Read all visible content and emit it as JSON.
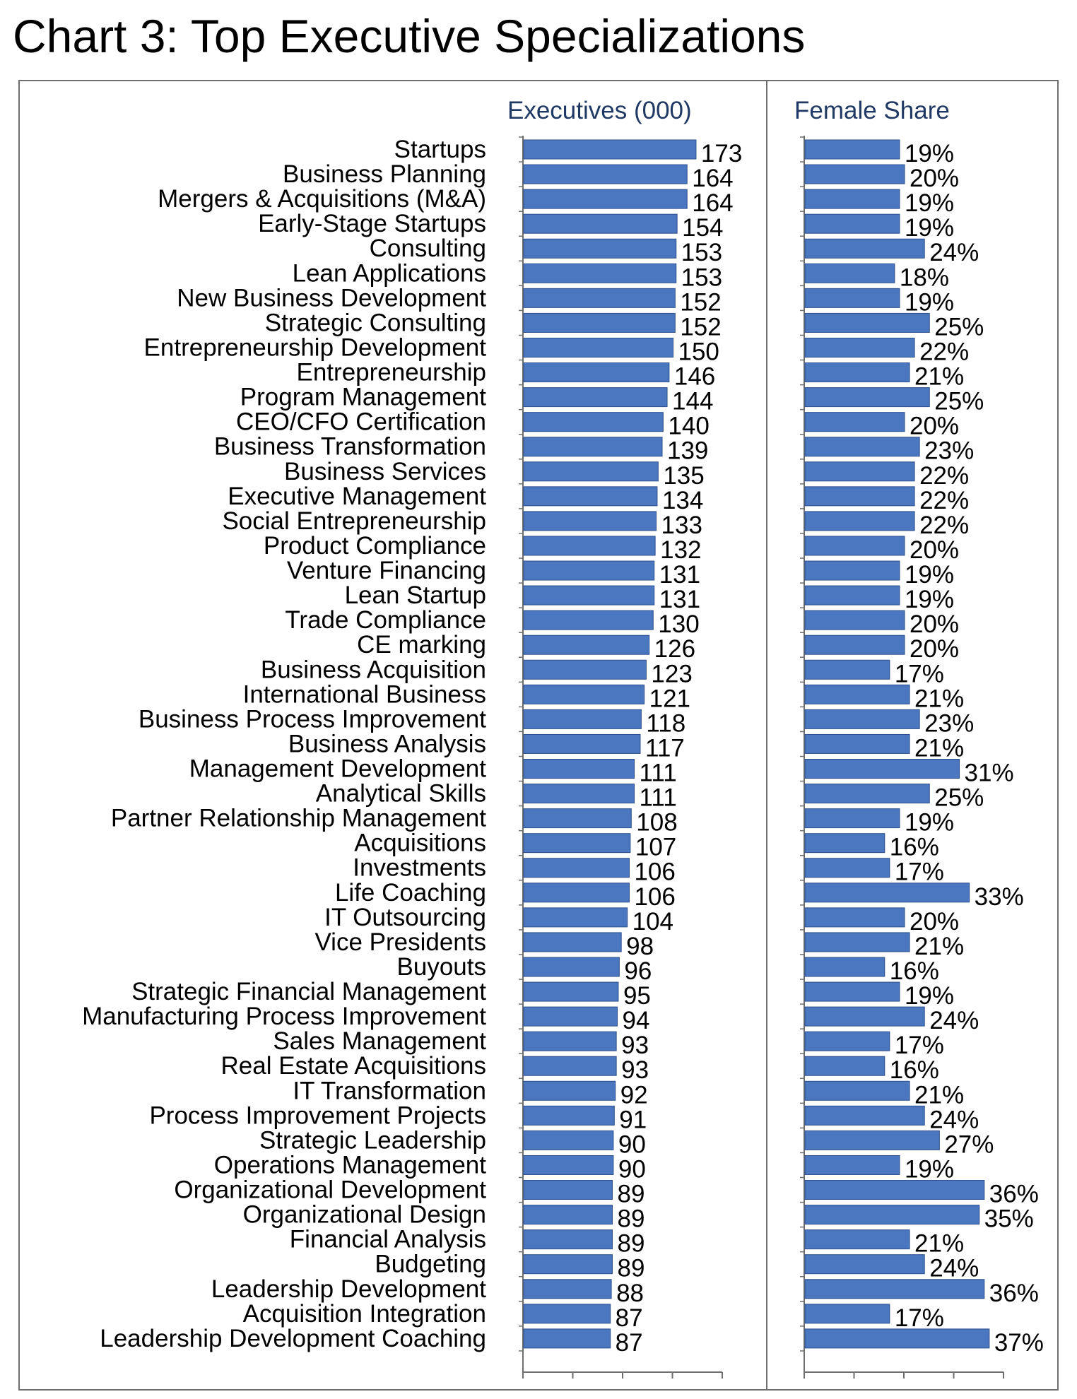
{
  "title": "Chart 3: Top Executive Specializations",
  "colors": {
    "bar_fill": "#4a77c0",
    "bar_stroke": "#2c4f8c",
    "header_text": "#1f3864",
    "frame": "#6e6e6e"
  },
  "chart_data": [
    {
      "type": "bar",
      "orientation": "horizontal",
      "title": "Executives (000)",
      "categories": [
        "Startups",
        "Business Planning",
        "Mergers & Acquisitions (M&A)",
        "Early-Stage Startups",
        "Consulting",
        "Lean Applications",
        "New Business Development",
        "Strategic Consulting",
        "Entrepreneurship Development",
        "Entrepreneurship",
        "Program Management",
        "CEO/CFO Certification",
        "Business Transformation",
        "Business Services",
        "Executive Management",
        "Social Entrepreneurship",
        "Product Compliance",
        "Venture Financing",
        "Lean Startup",
        "Trade Compliance",
        "CE marking",
        "Business Acquisition",
        "International Business",
        "Business Process Improvement",
        "Business Analysis",
        "Management Development",
        "Analytical Skills",
        "Partner Relationship Management",
        "Acquisitions",
        "Investments",
        "Life Coaching",
        "IT Outsourcing",
        "Vice Presidents",
        "Buyouts",
        "Strategic Financial Management",
        "Manufacturing Process Improvement",
        "Sales Management",
        "Real Estate Acquisitions",
        "IT Transformation",
        "Process Improvement Projects",
        "Strategic Leadership",
        "Operations Management",
        "Organizational Development",
        "Organizational Design",
        "Financial Analysis",
        "Budgeting",
        "Leadership Development",
        "Acquisition Integration",
        "Leadership Development Coaching"
      ],
      "values": [
        173,
        164,
        164,
        154,
        153,
        153,
        152,
        152,
        150,
        146,
        144,
        140,
        139,
        135,
        134,
        133,
        132,
        131,
        131,
        130,
        126,
        123,
        121,
        118,
        117,
        111,
        111,
        108,
        107,
        106,
        106,
        104,
        98,
        96,
        95,
        94,
        93,
        93,
        92,
        91,
        90,
        90,
        89,
        89,
        89,
        89,
        88,
        87,
        87
      ],
      "labels": [
        "173",
        "164",
        "164",
        "154",
        "153",
        "153",
        "152",
        "152",
        "150",
        "146",
        "144",
        "140",
        "139",
        "135",
        "134",
        "133",
        "132",
        "131",
        "131",
        "130",
        "126",
        "123",
        "121",
        "118",
        "117",
        "111",
        "111",
        "108",
        "107",
        "106",
        "106",
        "104",
        "98",
        "96",
        "95",
        "94",
        "93",
        "93",
        "92",
        "91",
        "90",
        "90",
        "89",
        "89",
        "89",
        "89",
        "88",
        "87",
        "87"
      ],
      "xlim": [
        0,
        200
      ],
      "grid": false,
      "legend": "none"
    },
    {
      "type": "bar",
      "orientation": "horizontal",
      "title": "Female Share",
      "categories": [
        "Startups",
        "Business Planning",
        "Mergers & Acquisitions (M&A)",
        "Early-Stage Startups",
        "Consulting",
        "Lean Applications",
        "New Business Development",
        "Strategic Consulting",
        "Entrepreneurship Development",
        "Entrepreneurship",
        "Program Management",
        "CEO/CFO Certification",
        "Business Transformation",
        "Business Services",
        "Executive Management",
        "Social Entrepreneurship",
        "Product Compliance",
        "Venture Financing",
        "Lean Startup",
        "Trade Compliance",
        "CE marking",
        "Business Acquisition",
        "International Business",
        "Business Process Improvement",
        "Business Analysis",
        "Management Development",
        "Analytical Skills",
        "Partner Relationship Management",
        "Acquisitions",
        "Investments",
        "Life Coaching",
        "IT Outsourcing",
        "Vice Presidents",
        "Buyouts",
        "Strategic Financial Management",
        "Manufacturing Process Improvement",
        "Sales Management",
        "Real Estate Acquisitions",
        "IT Transformation",
        "Process Improvement Projects",
        "Strategic Leadership",
        "Operations Management",
        "Organizational Development",
        "Organizational Design",
        "Financial Analysis",
        "Budgeting",
        "Leadership Development",
        "Acquisition Integration",
        "Leadership Development Coaching"
      ],
      "values": [
        19,
        20,
        19,
        19,
        24,
        18,
        19,
        25,
        22,
        21,
        25,
        20,
        23,
        22,
        22,
        22,
        20,
        19,
        19,
        20,
        20,
        17,
        21,
        23,
        21,
        31,
        25,
        19,
        16,
        17,
        33,
        20,
        21,
        16,
        19,
        24,
        17,
        16,
        21,
        24,
        27,
        19,
        36,
        35,
        21,
        24,
        36,
        17,
        37
      ],
      "labels": [
        "19%",
        "20%",
        "19%",
        "19%",
        "24%",
        "18%",
        "19%",
        "25%",
        "22%",
        "21%",
        "25%",
        "20%",
        "23%",
        "22%",
        "22%",
        "22%",
        "20%",
        "19%",
        "19%",
        "20%",
        "20%",
        "17%",
        "21%",
        "23%",
        "21%",
        "31%",
        "25%",
        "19%",
        "16%",
        "17%",
        "33%",
        "20%",
        "21%",
        "16%",
        "19%",
        "24%",
        "17%",
        "16%",
        "21%",
        "24%",
        "27%",
        "19%",
        "36%",
        "35%",
        "21%",
        "24%",
        "36%",
        "17%",
        "37%"
      ],
      "xlim": [
        0,
        40
      ],
      "grid": false,
      "legend": "none"
    }
  ]
}
